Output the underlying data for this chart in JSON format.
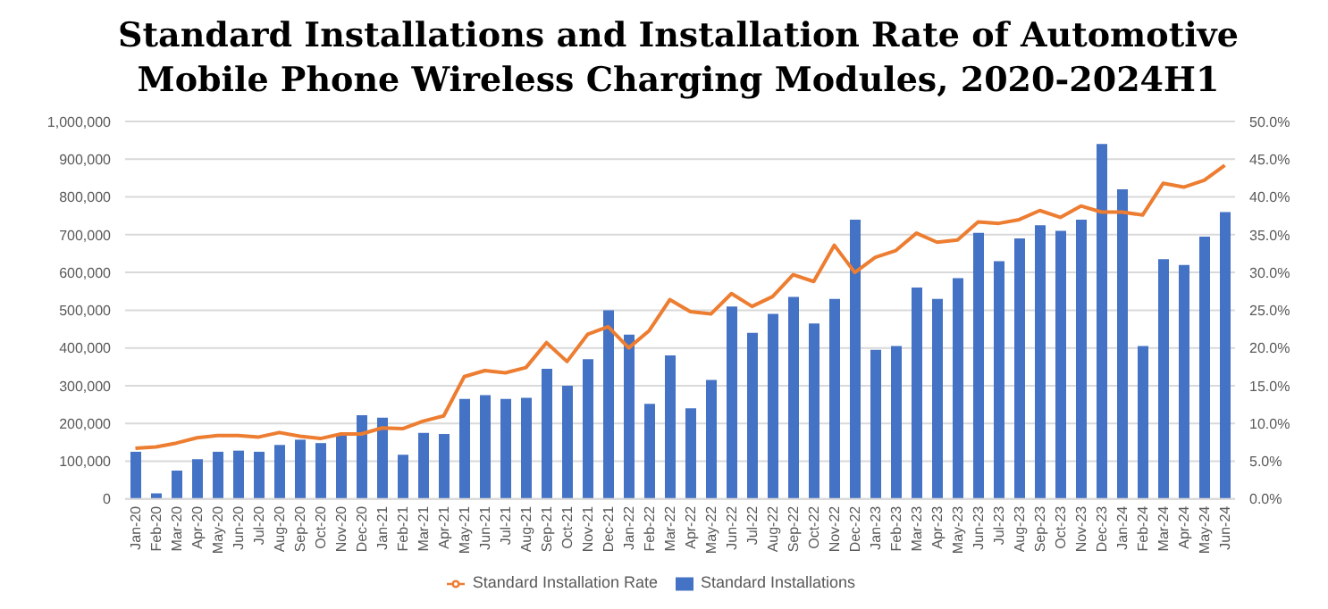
{
  "chart_data": {
    "type": "bar",
    "title": "Standard Installations and Installation Rate of Automotive Mobile Phone Wireless Charging Modules, 2020-2024H1",
    "categories": [
      "Jan-20",
      "Feb-20",
      "Mar-20",
      "Apr-20",
      "May-20",
      "Jun-20",
      "Jul-20",
      "Aug-20",
      "Sep-20",
      "Oct-20",
      "Nov-20",
      "Dec-20",
      "Jan-21",
      "Feb-21",
      "Mar-21",
      "Apr-21",
      "May-21",
      "Jun-21",
      "Jul-21",
      "Aug-21",
      "Sep-21",
      "Oct-21",
      "Nov-21",
      "Dec-21",
      "Jan-22",
      "Feb-22",
      "Mar-22",
      "Apr-22",
      "May-22",
      "Jun-22",
      "Jul-22",
      "Aug-22",
      "Sep-22",
      "Oct-22",
      "Nov-22",
      "Dec-22",
      "Jan-23",
      "Feb-23",
      "Mar-23",
      "Apr-23",
      "May-23",
      "Jun-23",
      "Jul-23",
      "Aug-23",
      "Sep-23",
      "Oct-23",
      "Nov-23",
      "Dec-23",
      "Jan-24",
      "Feb-24",
      "Mar-24",
      "Apr-24",
      "May-24",
      "Jun-24"
    ],
    "series": [
      {
        "name": "Standard Installations",
        "color": "#4472c4",
        "values": [
          125000,
          15000,
          75000,
          105000,
          125000,
          128000,
          125000,
          143000,
          157000,
          148000,
          170000,
          222000,
          215000,
          117000,
          175000,
          172000,
          265000,
          275000,
          265000,
          268000,
          345000,
          300000,
          370000,
          500000,
          435000,
          252000,
          380000,
          240000,
          315000,
          510000,
          440000,
          490000,
          535000,
          465000,
          530000,
          740000,
          395000,
          405000,
          560000,
          530000,
          585000,
          705000,
          630000,
          690000,
          725000,
          710000,
          740000,
          940000,
          820000,
          405000,
          635000,
          620000,
          695000,
          760000
        ]
      },
      {
        "name": "Standard Installation Rate",
        "type": "line",
        "axis": "y2",
        "color": "#ed7d31",
        "marker": "none",
        "values": [
          6.7,
          6.9,
          7.4,
          8.1,
          8.4,
          8.4,
          8.2,
          8.8,
          8.3,
          8.0,
          8.6,
          8.6,
          9.4,
          9.3,
          10.3,
          11.0,
          16.2,
          17.0,
          16.7,
          17.4,
          20.7,
          18.2,
          21.8,
          22.8,
          20.0,
          22.3,
          26.4,
          24.8,
          24.5,
          27.2,
          25.5,
          26.8,
          29.7,
          28.8,
          33.6,
          30.0,
          32.0,
          32.9,
          35.2,
          34.0,
          34.3,
          36.7,
          36.5,
          37.0,
          38.2,
          37.3,
          38.8,
          38.0,
          38.0,
          37.6,
          41.8,
          41.3,
          42.2,
          44.2
        ]
      }
    ],
    "ylim": [
      0,
      1000000
    ],
    "yticks": [
      {
        "value": 0,
        "label": "0"
      },
      {
        "value": 100000,
        "label": "100,000"
      },
      {
        "value": 200000,
        "label": "200,000"
      },
      {
        "value": 300000,
        "label": "300,000"
      },
      {
        "value": 400000,
        "label": "400,000"
      },
      {
        "value": 500000,
        "label": "500,000"
      },
      {
        "value": 600000,
        "label": "600,000"
      },
      {
        "value": 700000,
        "label": "700,000"
      },
      {
        "value": 800000,
        "label": "800,000"
      },
      {
        "value": 900000,
        "label": "900,000"
      },
      {
        "value": 1000000,
        "label": "1,000,000"
      }
    ],
    "y2lim": [
      0,
      50
    ],
    "y2ticks": [
      {
        "value": 0,
        "label": "0.0%"
      },
      {
        "value": 5,
        "label": "5.0%"
      },
      {
        "value": 10,
        "label": "10.0%"
      },
      {
        "value": 15,
        "label": "15.0%"
      },
      {
        "value": 20,
        "label": "20.0%"
      },
      {
        "value": 25,
        "label": "25.0%"
      },
      {
        "value": 30,
        "label": "30.0%"
      },
      {
        "value": 35,
        "label": "35.0%"
      },
      {
        "value": 40,
        "label": "40.0%"
      },
      {
        "value": 45,
        "label": "45.0%"
      },
      {
        "value": 50,
        "label": "50.0%"
      }
    ],
    "grid": "y",
    "legend": "bottom"
  }
}
